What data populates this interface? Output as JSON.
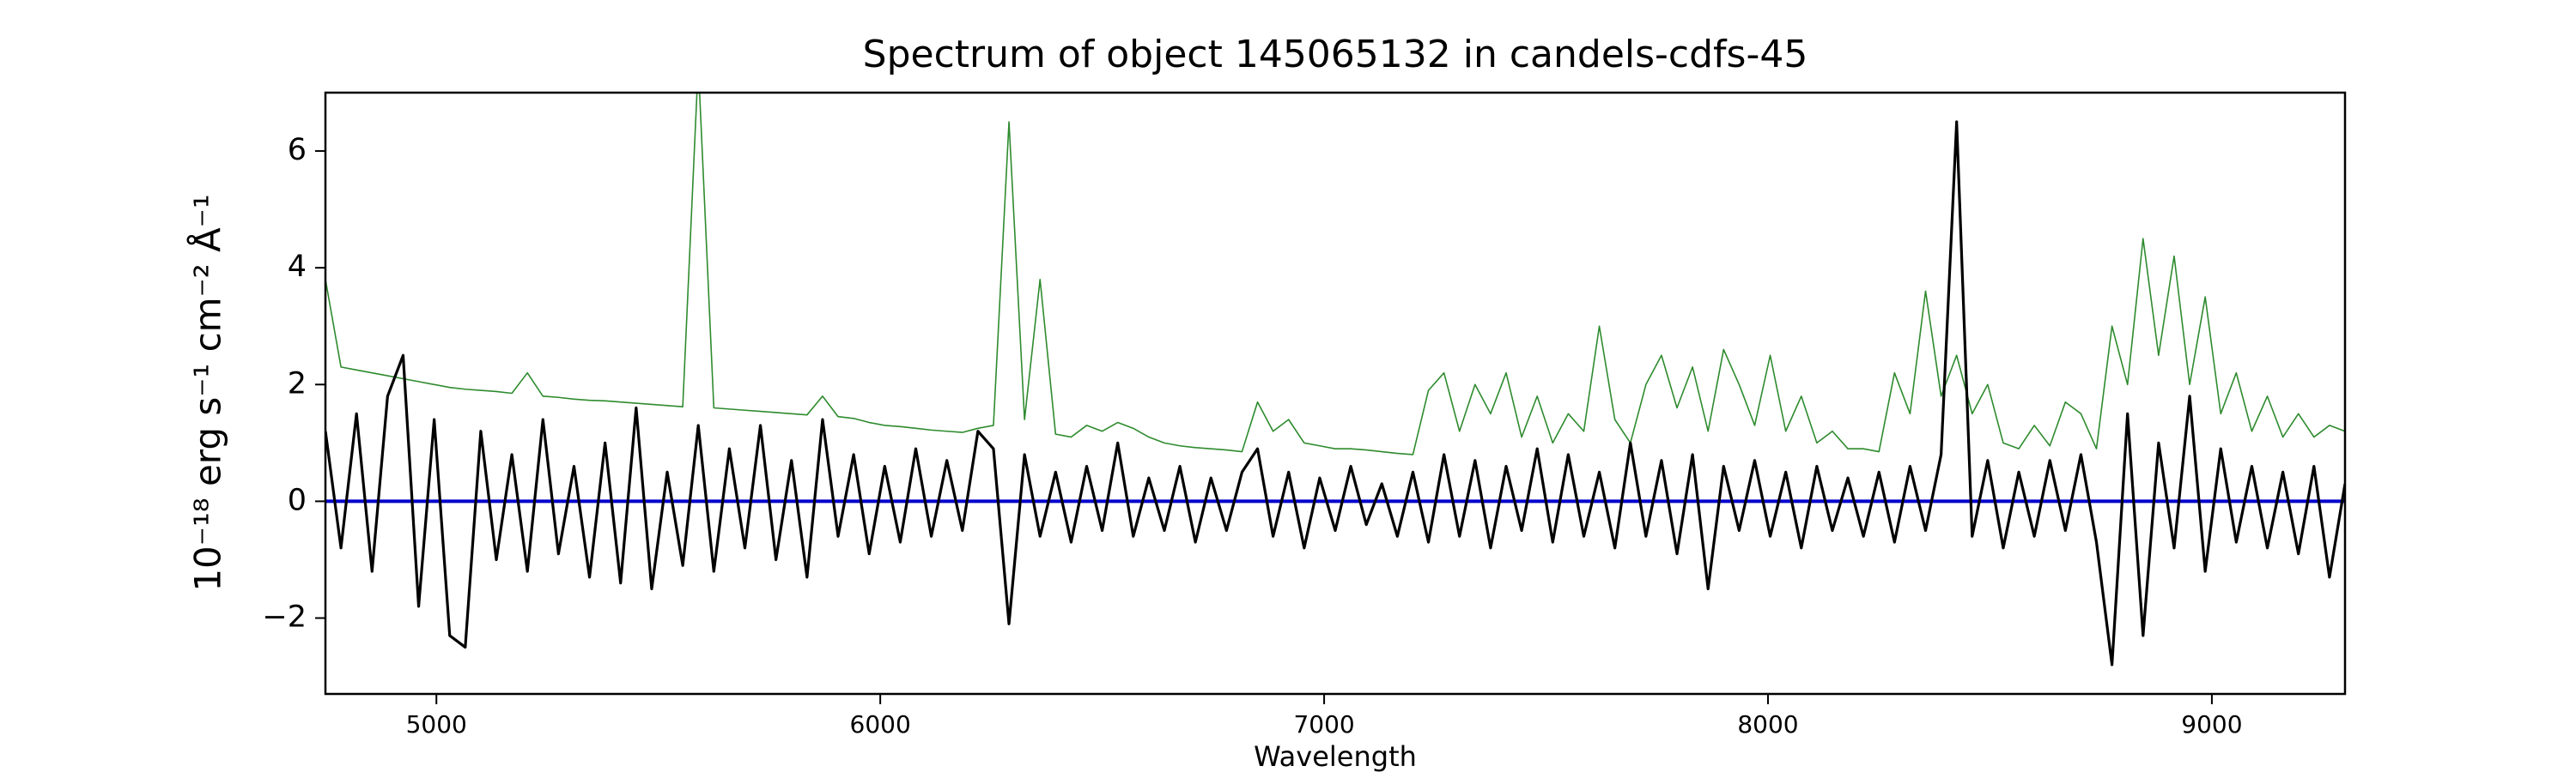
{
  "chart_data": {
    "type": "line",
    "title": "Spectrum of object 145065132 in candels-cdfs-45",
    "x_label": "Wavelength",
    "y_label": "10⁻¹⁸ erg s⁻¹ cm⁻² Å⁻¹",
    "x": [
      4750,
      4785,
      4820,
      4855,
      4890,
      4925,
      4960,
      4995,
      5030,
      5065,
      5100,
      5135,
      5170,
      5205,
      5240,
      5275,
      5310,
      5345,
      5380,
      5415,
      5450,
      5485,
      5520,
      5555,
      5590,
      5625,
      5660,
      5695,
      5730,
      5765,
      5800,
      5835,
      5870,
      5905,
      5940,
      5975,
      6010,
      6045,
      6080,
      6115,
      6150,
      6185,
      6220,
      6255,
      6290,
      6325,
      6360,
      6395,
      6430,
      6465,
      6500,
      6535,
      6570,
      6605,
      6640,
      6675,
      6710,
      6745,
      6780,
      6815,
      6850,
      6885,
      6920,
      6955,
      6990,
      7025,
      7060,
      7095,
      7130,
      7165,
      7200,
      7235,
      7270,
      7305,
      7340,
      7375,
      7410,
      7445,
      7480,
      7515,
      7550,
      7585,
      7620,
      7655,
      7690,
      7725,
      7760,
      7795,
      7830,
      7865,
      7900,
      7935,
      7970,
      8005,
      8040,
      8075,
      8110,
      8145,
      8180,
      8215,
      8250,
      8285,
      8320,
      8355,
      8390,
      8425,
      8460,
      8495,
      8530,
      8565,
      8600,
      8635,
      8670,
      8705,
      8740,
      8775,
      8810,
      8845,
      8880,
      8915,
      8950,
      8985,
      9020,
      9055,
      9090,
      9125,
      9160,
      9195,
      9230,
      9265,
      9300
    ],
    "series": [
      {
        "color": "#2e8b2e",
        "values": [
          3.8,
          2.3,
          2.25,
          2.2,
          2.15,
          2.1,
          2.05,
          2.0,
          1.95,
          1.92,
          1.9,
          1.88,
          1.85,
          2.2,
          1.8,
          1.78,
          1.75,
          1.73,
          1.72,
          1.7,
          1.68,
          1.66,
          1.64,
          1.62,
          7.5,
          1.6,
          1.58,
          1.56,
          1.54,
          1.52,
          1.5,
          1.48,
          1.8,
          1.45,
          1.42,
          1.35,
          1.3,
          1.28,
          1.25,
          1.22,
          1.2,
          1.18,
          1.25,
          1.3,
          6.5,
          1.4,
          3.8,
          1.15,
          1.1,
          1.3,
          1.2,
          1.35,
          1.25,
          1.1,
          1.0,
          0.95,
          0.92,
          0.9,
          0.88,
          0.85,
          1.7,
          1.2,
          1.4,
          1.0,
          0.95,
          0.9,
          0.9,
          0.88,
          0.85,
          0.82,
          0.8,
          1.9,
          2.2,
          1.2,
          2.0,
          1.5,
          2.2,
          1.1,
          1.8,
          1.0,
          1.5,
          1.2,
          3.0,
          1.4,
          1.0,
          2.0,
          2.5,
          1.6,
          2.3,
          1.2,
          2.6,
          2.0,
          1.3,
          2.5,
          1.2,
          1.8,
          1.0,
          1.2,
          0.9,
          0.9,
          0.85,
          2.2,
          1.5,
          3.6,
          1.8,
          2.5,
          1.5,
          2.0,
          1.0,
          0.9,
          1.3,
          0.95,
          1.7,
          1.5,
          0.9,
          3.0,
          2.0,
          4.5,
          2.5,
          4.2,
          2.0,
          3.5,
          1.5,
          2.2,
          1.2,
          1.8,
          1.1,
          1.5,
          1.1,
          1.3,
          1.2
        ]
      },
      {
        "color": "#000000",
        "values": [
          1.2,
          -0.8,
          1.5,
          -1.2,
          1.8,
          2.5,
          -1.8,
          1.4,
          -2.3,
          -2.5,
          1.2,
          -1.0,
          0.8,
          -1.2,
          1.4,
          -0.9,
          0.6,
          -1.3,
          1.0,
          -1.4,
          1.6,
          -1.5,
          0.5,
          -1.1,
          1.3,
          -1.2,
          0.9,
          -0.8,
          1.3,
          -1.0,
          0.7,
          -1.3,
          1.4,
          -0.6,
          0.8,
          -0.9,
          0.6,
          -0.7,
          0.9,
          -0.6,
          0.7,
          -0.5,
          1.2,
          0.9,
          -2.1,
          0.8,
          -0.6,
          0.5,
          -0.7,
          0.6,
          -0.5,
          1.0,
          -0.6,
          0.4,
          -0.5,
          0.6,
          -0.7,
          0.4,
          -0.5,
          0.5,
          0.9,
          -0.6,
          0.5,
          -0.8,
          0.4,
          -0.5,
          0.6,
          -0.4,
          0.3,
          -0.6,
          0.5,
          -0.7,
          0.8,
          -0.6,
          0.7,
          -0.8,
          0.6,
          -0.5,
          0.9,
          -0.7,
          0.8,
          -0.6,
          0.5,
          -0.8,
          1.0,
          -0.6,
          0.7,
          -0.9,
          0.8,
          -1.5,
          0.6,
          -0.5,
          0.7,
          -0.6,
          0.5,
          -0.8,
          0.6,
          -0.5,
          0.4,
          -0.6,
          0.5,
          -0.7,
          0.6,
          -0.5,
          0.8,
          6.5,
          -0.6,
          0.7,
          -0.8,
          0.5,
          -0.6,
          0.7,
          -0.5,
          0.8,
          -0.7,
          -2.8,
          1.5,
          -2.3,
          1.0,
          -0.8,
          1.8,
          -1.2,
          0.9,
          -0.7,
          0.6,
          -0.8,
          0.5,
          -0.9,
          0.6,
          -1.3,
          0.3
        ]
      }
    ],
    "hlines": [
      {
        "y": 0,
        "color": "#0000cc"
      }
    ],
    "xlim": [
      4750,
      9300
    ],
    "ylim": [
      -3.3,
      7
    ],
    "xticks": [
      5000,
      6000,
      7000,
      8000,
      9000
    ],
    "yticks": [
      {
        "value": -2,
        "label": "−2"
      },
      0,
      2,
      4,
      6
    ]
  }
}
